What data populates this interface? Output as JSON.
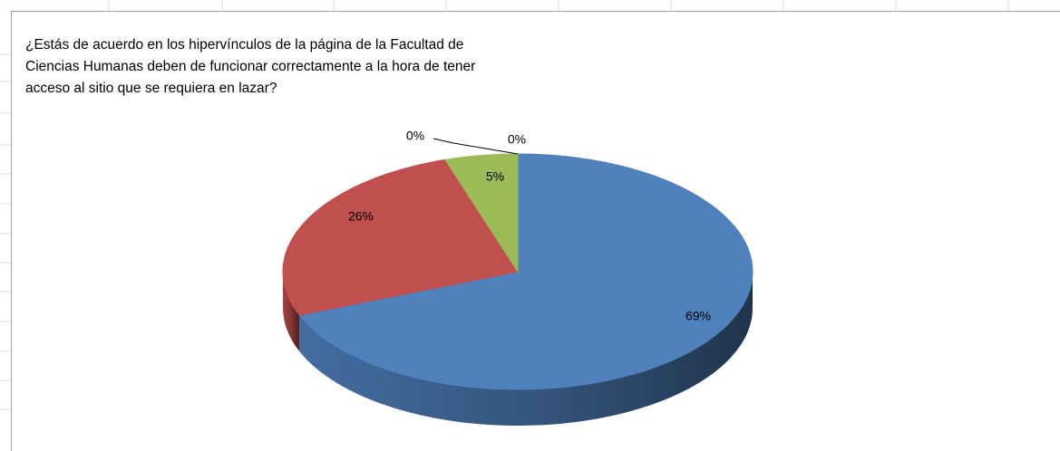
{
  "chart_data": {
    "type": "pie",
    "title": "¿Estás de acuerdo en los hipervínculos de  la página de la Facultad de\nCiencias Humanas  deben de funcionar correctamente  a la hora de tener\nacceso  al sitio  que se requiera  en  lazar?",
    "values": [
      69,
      26,
      5,
      0,
      0
    ],
    "value_labels": [
      "69%",
      "26%",
      "5%",
      "0%",
      "0%"
    ],
    "colors": [
      "#4f81bd",
      "#c0504d",
      "#9bbb59",
      "#8064a2",
      "#4bacc6"
    ],
    "three_d": true
  }
}
